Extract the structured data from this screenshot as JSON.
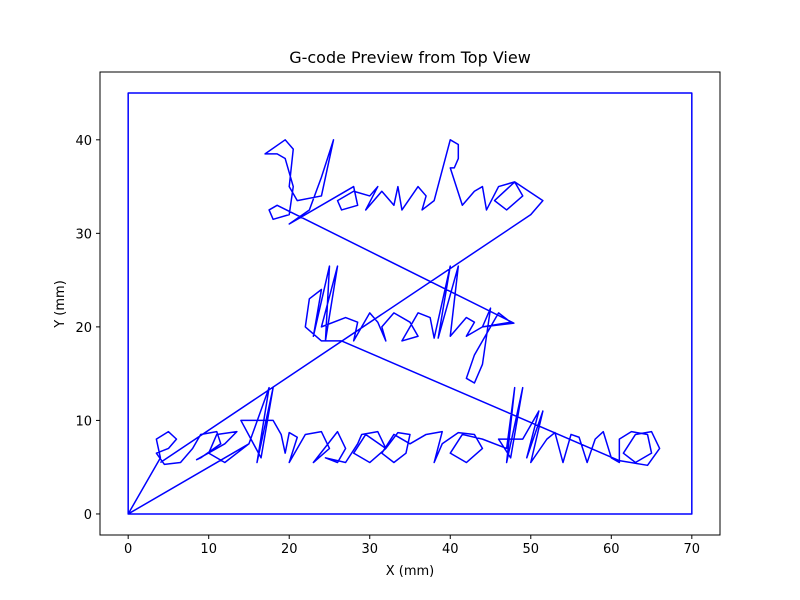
{
  "chart_data": {
    "type": "line",
    "title": "G-code Preview from Top View",
    "xlabel": "X (mm)",
    "ylabel": "Y (mm)",
    "xlim": [
      -3.5,
      73.5
    ],
    "ylim": [
      -2.25,
      47.25
    ],
    "xticks": [
      0,
      10,
      20,
      30,
      40,
      50,
      60,
      70
    ],
    "yticks": [
      0,
      10,
      20,
      30,
      40
    ],
    "series": [
      {
        "color": "#0000ff",
        "x": [
          0,
          70,
          70,
          0,
          0,
          15,
          0,
          4,
          3.5,
          5,
          6,
          5,
          3.5,
          4.5,
          6.5,
          8,
          9,
          11,
          11.5,
          9,
          8.5,
          12,
          13.5,
          11,
          10,
          12,
          15,
          17.5,
          16,
          18,
          16.5,
          14,
          18,
          19,
          19.5,
          20,
          21,
          20,
          22,
          24,
          25,
          23,
          26,
          27,
          26,
          24.5,
          27,
          28.5,
          29,
          31,
          32,
          30,
          28,
          29.5,
          32,
          33.5,
          35,
          34.5,
          33,
          31.5,
          33,
          35,
          37,
          39,
          38,
          39,
          41,
          43,
          44,
          42,
          40,
          41.5,
          44,
          47,
          48,
          47,
          49,
          47.5,
          46,
          49,
          51,
          49.5,
          51.5,
          50,
          52,
          53,
          54,
          55,
          56,
          57,
          58,
          59,
          60,
          61,
          61,
          62.5,
          64.5,
          65,
          63,
          61.5,
          63,
          65,
          66,
          64.5,
          61,
          26.5,
          24,
          22,
          22.5,
          24,
          23,
          25,
          24.5,
          26,
          24,
          27,
          28.5,
          28,
          30,
          31,
          32,
          31.5,
          33,
          35,
          36,
          34,
          36,
          37.5,
          38,
          40,
          38.5,
          41,
          40,
          42,
          43,
          42,
          44,
          45,
          44,
          43,
          42,
          43,
          46,
          47.5,
          44,
          47.9,
          18.5,
          17.5,
          18,
          20,
          20.5,
          19.5,
          18.5,
          17,
          19.5,
          20.5,
          20,
          21,
          24,
          25.5,
          24,
          22.5,
          20,
          26,
          28,
          28.5,
          26.5,
          26,
          28,
          30,
          31,
          29.5,
          31.5,
          33,
          33.5,
          34,
          36,
          37,
          36.5,
          38,
          40,
          41,
          41,
          40.5,
          40,
          41.5,
          43,
          44,
          44.5,
          46,
          48,
          49,
          47,
          45.5,
          48,
          51.5,
          50,
          4
        ],
        "values": [
          0,
          0,
          45,
          45,
          0,
          7.5,
          0,
          6,
          8,
          8.8,
          8,
          7,
          6.5,
          5.3,
          5.5,
          7,
          8.5,
          8.8,
          7.5,
          6,
          5.8,
          7.5,
          8.8,
          8.5,
          6.5,
          5.5,
          7.5,
          13.5,
          5.5,
          13.5,
          6,
          10,
          10,
          8.5,
          6.5,
          8.7,
          8.2,
          5.5,
          8.5,
          8.8,
          7,
          5.5,
          8.8,
          7,
          5.5,
          6,
          5.5,
          7.5,
          8.5,
          8.8,
          7,
          5.5,
          6.5,
          8.5,
          7,
          8.7,
          8.5,
          6.5,
          5.5,
          6.5,
          8.5,
          7.5,
          8.5,
          8.8,
          5.5,
          7.5,
          8.7,
          8.5,
          7,
          5.5,
          6.5,
          8.5,
          8,
          7,
          13.5,
          5.5,
          13.5,
          6,
          8,
          8,
          11,
          6,
          11,
          5.5,
          8,
          8.7,
          5.5,
          8.5,
          8.2,
          5.5,
          8,
          8.8,
          6,
          5.5,
          8,
          8.8,
          8.5,
          6.5,
          5.5,
          6.5,
          8.5,
          8.8,
          7,
          5.2,
          5.7,
          18.5,
          18.5,
          20,
          23,
          24,
          19,
          26.5,
          18.5,
          26.5,
          20,
          21,
          20.5,
          18.5,
          21.5,
          20.5,
          18.5,
          20,
          21.5,
          20.5,
          19,
          18.5,
          21.5,
          21,
          18.8,
          26.5,
          18.8,
          26.5,
          19,
          21,
          20.5,
          19,
          20,
          22,
          16,
          14,
          14.5,
          17,
          21.5,
          20.5,
          20,
          20.4,
          33,
          32.5,
          31.5,
          32,
          35,
          38,
          38.5,
          38.5,
          40,
          39,
          35,
          33.5,
          34,
          40,
          36,
          32.5,
          31,
          34,
          35,
          33,
          32.5,
          33.5,
          34.5,
          34,
          35,
          32.5,
          34.5,
          33,
          35,
          32.5,
          35,
          34,
          32.5,
          33.5,
          40,
          39.5,
          38,
          37,
          37,
          33,
          34.5,
          35,
          32.5,
          35,
          35.5,
          34,
          32.5,
          33.5,
          35.5,
          33.5,
          32,
          5.5
        ]
      }
    ]
  }
}
